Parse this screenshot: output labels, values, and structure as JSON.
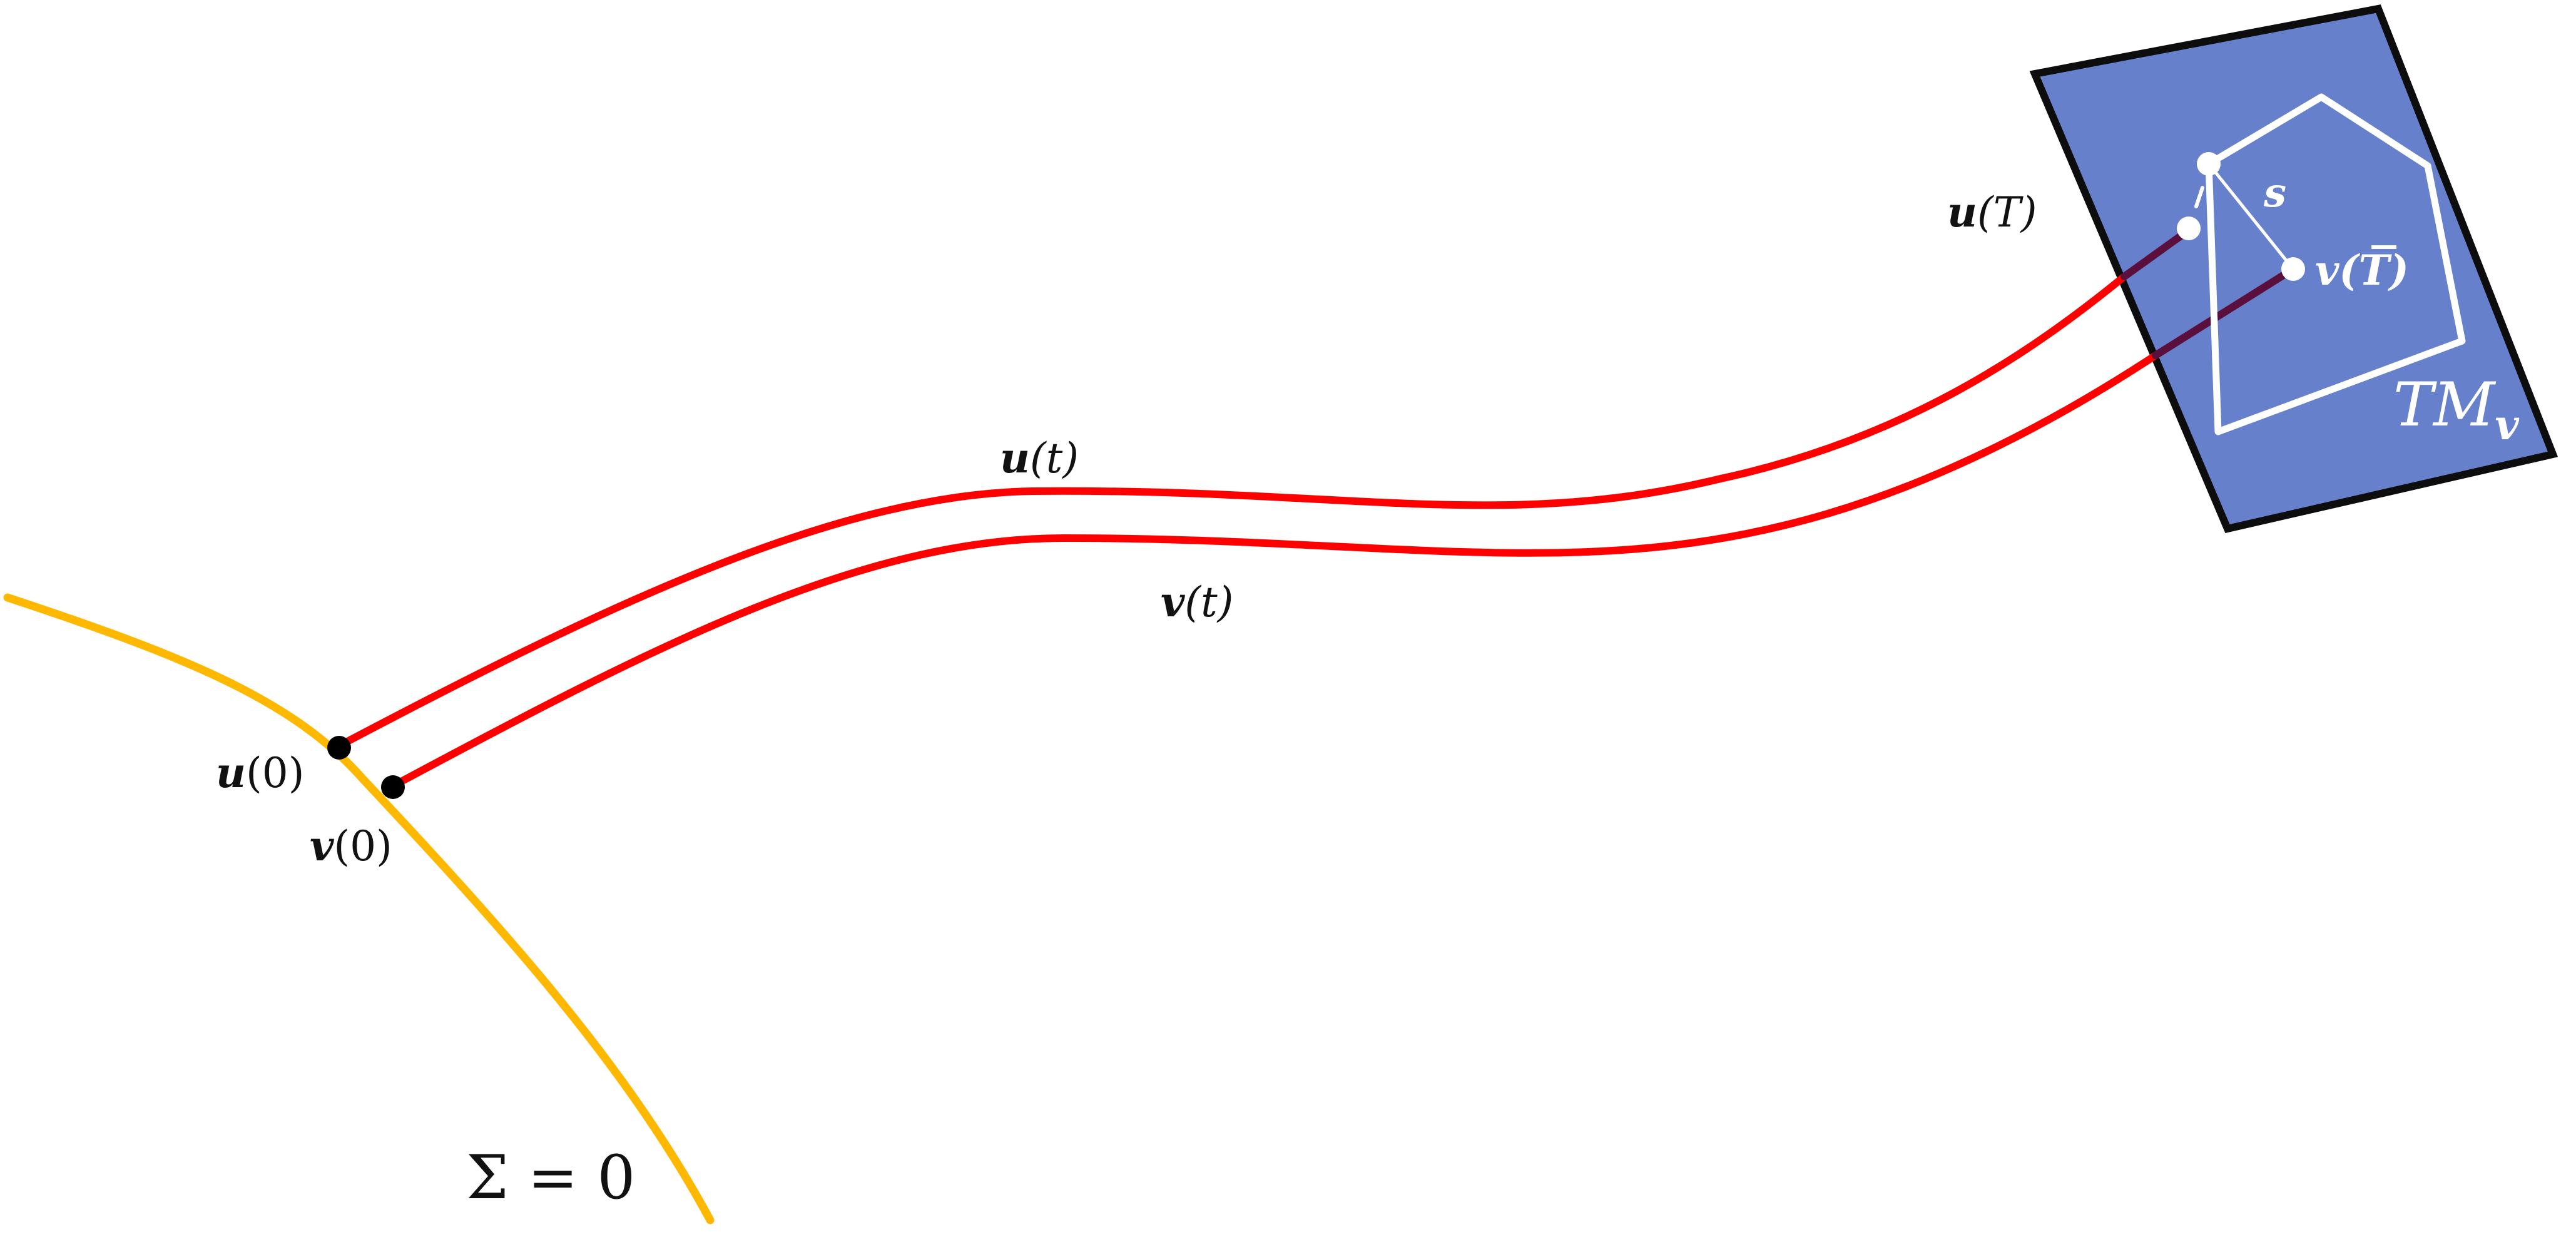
{
  "colors": {
    "manifold_curve": "#FFB800",
    "trajectory": "#FF0000",
    "trajectory_inside_plane": "#5A0F3C",
    "tangent_plane_fill": "#6680CC",
    "tangent_plane_border": "#0D0D0D",
    "polygon": "#FFFFFF",
    "point_dark": "#000000",
    "point_light": "#FFFFFF"
  },
  "labels": {
    "u0": {
      "bold": "u",
      "rest": "(0)"
    },
    "v0": {
      "bold": "v",
      "rest": "(0)"
    },
    "ut": {
      "bold": "u",
      "rest": "(t)"
    },
    "vt": {
      "bold": "v",
      "rest": "(t)"
    },
    "uT": {
      "bold": "u",
      "rest": "(T)"
    },
    "vTbar": {
      "bold": "v",
      "rest": "(T)"
    },
    "s": "s",
    "tangent_plane": {
      "main": "TM",
      "sub": "v"
    },
    "surface_eq": "Σ = 0"
  }
}
